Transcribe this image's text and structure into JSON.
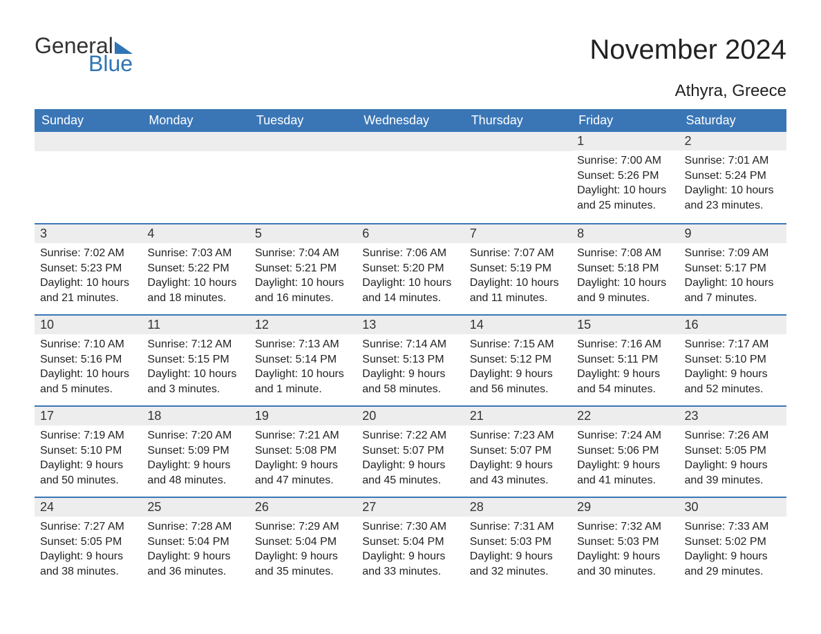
{
  "logo": {
    "word1": "General",
    "word2": "Blue"
  },
  "title": "November 2024",
  "subtitle": "Athyra, Greece",
  "colors": {
    "header_bg": "#3a76b6",
    "header_text": "#ffffff",
    "daynum_bg": "#ededed",
    "row_border": "#3a76b6",
    "logo_blue": "#2f74b5",
    "page_bg": "#ffffff",
    "text": "#222222"
  },
  "weekdays": [
    "Sunday",
    "Monday",
    "Tuesday",
    "Wednesday",
    "Thursday",
    "Friday",
    "Saturday"
  ],
  "weeks": [
    [
      null,
      null,
      null,
      null,
      null,
      {
        "n": "1",
        "sunrise": "Sunrise: 7:00 AM",
        "sunset": "Sunset: 5:26 PM",
        "daylight": "Daylight: 10 hours and 25 minutes."
      },
      {
        "n": "2",
        "sunrise": "Sunrise: 7:01 AM",
        "sunset": "Sunset: 5:24 PM",
        "daylight": "Daylight: 10 hours and 23 minutes."
      }
    ],
    [
      {
        "n": "3",
        "sunrise": "Sunrise: 7:02 AM",
        "sunset": "Sunset: 5:23 PM",
        "daylight": "Daylight: 10 hours and 21 minutes."
      },
      {
        "n": "4",
        "sunrise": "Sunrise: 7:03 AM",
        "sunset": "Sunset: 5:22 PM",
        "daylight": "Daylight: 10 hours and 18 minutes."
      },
      {
        "n": "5",
        "sunrise": "Sunrise: 7:04 AM",
        "sunset": "Sunset: 5:21 PM",
        "daylight": "Daylight: 10 hours and 16 minutes."
      },
      {
        "n": "6",
        "sunrise": "Sunrise: 7:06 AM",
        "sunset": "Sunset: 5:20 PM",
        "daylight": "Daylight: 10 hours and 14 minutes."
      },
      {
        "n": "7",
        "sunrise": "Sunrise: 7:07 AM",
        "sunset": "Sunset: 5:19 PM",
        "daylight": "Daylight: 10 hours and 11 minutes."
      },
      {
        "n": "8",
        "sunrise": "Sunrise: 7:08 AM",
        "sunset": "Sunset: 5:18 PM",
        "daylight": "Daylight: 10 hours and 9 minutes."
      },
      {
        "n": "9",
        "sunrise": "Sunrise: 7:09 AM",
        "sunset": "Sunset: 5:17 PM",
        "daylight": "Daylight: 10 hours and 7 minutes."
      }
    ],
    [
      {
        "n": "10",
        "sunrise": "Sunrise: 7:10 AM",
        "sunset": "Sunset: 5:16 PM",
        "daylight": "Daylight: 10 hours and 5 minutes."
      },
      {
        "n": "11",
        "sunrise": "Sunrise: 7:12 AM",
        "sunset": "Sunset: 5:15 PM",
        "daylight": "Daylight: 10 hours and 3 minutes."
      },
      {
        "n": "12",
        "sunrise": "Sunrise: 7:13 AM",
        "sunset": "Sunset: 5:14 PM",
        "daylight": "Daylight: 10 hours and 1 minute."
      },
      {
        "n": "13",
        "sunrise": "Sunrise: 7:14 AM",
        "sunset": "Sunset: 5:13 PM",
        "daylight": "Daylight: 9 hours and 58 minutes."
      },
      {
        "n": "14",
        "sunrise": "Sunrise: 7:15 AM",
        "sunset": "Sunset: 5:12 PM",
        "daylight": "Daylight: 9 hours and 56 minutes."
      },
      {
        "n": "15",
        "sunrise": "Sunrise: 7:16 AM",
        "sunset": "Sunset: 5:11 PM",
        "daylight": "Daylight: 9 hours and 54 minutes."
      },
      {
        "n": "16",
        "sunrise": "Sunrise: 7:17 AM",
        "sunset": "Sunset: 5:10 PM",
        "daylight": "Daylight: 9 hours and 52 minutes."
      }
    ],
    [
      {
        "n": "17",
        "sunrise": "Sunrise: 7:19 AM",
        "sunset": "Sunset: 5:10 PM",
        "daylight": "Daylight: 9 hours and 50 minutes."
      },
      {
        "n": "18",
        "sunrise": "Sunrise: 7:20 AM",
        "sunset": "Sunset: 5:09 PM",
        "daylight": "Daylight: 9 hours and 48 minutes."
      },
      {
        "n": "19",
        "sunrise": "Sunrise: 7:21 AM",
        "sunset": "Sunset: 5:08 PM",
        "daylight": "Daylight: 9 hours and 47 minutes."
      },
      {
        "n": "20",
        "sunrise": "Sunrise: 7:22 AM",
        "sunset": "Sunset: 5:07 PM",
        "daylight": "Daylight: 9 hours and 45 minutes."
      },
      {
        "n": "21",
        "sunrise": "Sunrise: 7:23 AM",
        "sunset": "Sunset: 5:07 PM",
        "daylight": "Daylight: 9 hours and 43 minutes."
      },
      {
        "n": "22",
        "sunrise": "Sunrise: 7:24 AM",
        "sunset": "Sunset: 5:06 PM",
        "daylight": "Daylight: 9 hours and 41 minutes."
      },
      {
        "n": "23",
        "sunrise": "Sunrise: 7:26 AM",
        "sunset": "Sunset: 5:05 PM",
        "daylight": "Daylight: 9 hours and 39 minutes."
      }
    ],
    [
      {
        "n": "24",
        "sunrise": "Sunrise: 7:27 AM",
        "sunset": "Sunset: 5:05 PM",
        "daylight": "Daylight: 9 hours and 38 minutes."
      },
      {
        "n": "25",
        "sunrise": "Sunrise: 7:28 AM",
        "sunset": "Sunset: 5:04 PM",
        "daylight": "Daylight: 9 hours and 36 minutes."
      },
      {
        "n": "26",
        "sunrise": "Sunrise: 7:29 AM",
        "sunset": "Sunset: 5:04 PM",
        "daylight": "Daylight: 9 hours and 35 minutes."
      },
      {
        "n": "27",
        "sunrise": "Sunrise: 7:30 AM",
        "sunset": "Sunset: 5:04 PM",
        "daylight": "Daylight: 9 hours and 33 minutes."
      },
      {
        "n": "28",
        "sunrise": "Sunrise: 7:31 AM",
        "sunset": "Sunset: 5:03 PM",
        "daylight": "Daylight: 9 hours and 32 minutes."
      },
      {
        "n": "29",
        "sunrise": "Sunrise: 7:32 AM",
        "sunset": "Sunset: 5:03 PM",
        "daylight": "Daylight: 9 hours and 30 minutes."
      },
      {
        "n": "30",
        "sunrise": "Sunrise: 7:33 AM",
        "sunset": "Sunset: 5:02 PM",
        "daylight": "Daylight: 9 hours and 29 minutes."
      }
    ]
  ]
}
